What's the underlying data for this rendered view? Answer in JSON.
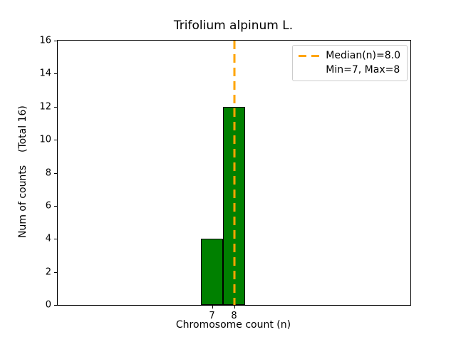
{
  "chart_data": {
    "type": "bar",
    "title": "Trifolium alpinum L.",
    "xlabel": "Chromosome count (n)",
    "ylabel": "Num of counts    (Total 16)",
    "categories": [
      7,
      8
    ],
    "values": [
      4,
      12
    ],
    "bar_width": 1,
    "xlim": [
      0,
      16
    ],
    "ylim": [
      0,
      16
    ],
    "xticks": [
      7,
      8
    ],
    "yticks": [
      0,
      2,
      4,
      6,
      8,
      10,
      12,
      14,
      16
    ],
    "grid": false,
    "total_counts": 16,
    "median": {
      "x": 8.0,
      "label": "Median(n)=8.0"
    },
    "min": 7,
    "max": 8,
    "legend": {
      "position": "upper right",
      "entries": [
        {
          "label": "Median(n)=8.0",
          "has_line": true
        },
        {
          "label": "Min=7, Max=8",
          "has_line": false
        }
      ]
    },
    "colors": {
      "bar_fill": "#008000",
      "bar_edge": "#000000",
      "median_line": "#ffa500",
      "spine": "#000000",
      "legend_border": "#cccccc",
      "background": "#ffffff"
    }
  }
}
